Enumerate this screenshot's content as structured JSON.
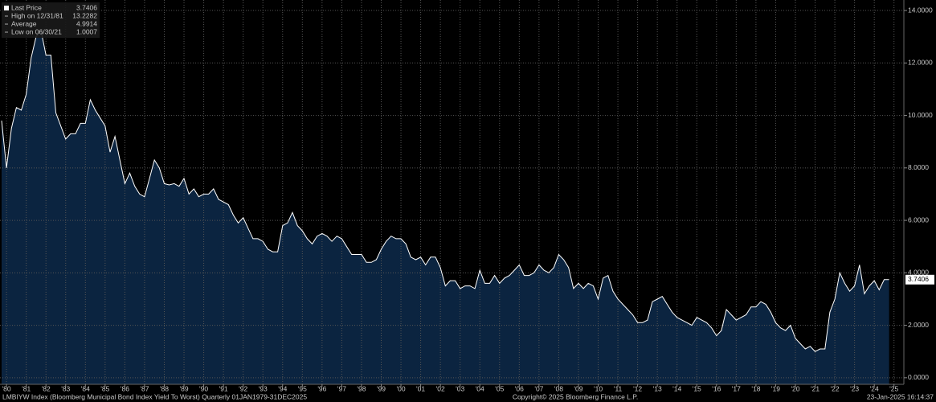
{
  "chart_data": {
    "type": "area",
    "legend": [
      {
        "label": "Last Price",
        "value": 3.7406
      },
      {
        "label": "High on 12/31/81",
        "value": 13.2282
      },
      {
        "label": "Average",
        "value": 4.9914
      },
      {
        "label": "Low on 06/30/21",
        "value": 1.0007
      }
    ],
    "footer": {
      "description": "LMBIYW Index (Bloomberg Municipal Bond Index Yield To Worst)  Quarterly 01JAN1979-31DEC2025",
      "copyright": "Copyright© 2025 Bloomberg Finance L.P.",
      "timestamp": "23-Jan-2025 16:14:37"
    },
    "xlim": [
      1979.67,
      2025.5
    ],
    "ylim": [
      -0.25,
      14.4
    ],
    "grid": true,
    "fill_color": "#0b2440",
    "line_color": "#ffffff",
    "xticks": [
      {
        "value": 1980,
        "label": "'80"
      },
      {
        "value": 1981,
        "label": "'81"
      },
      {
        "value": 1982,
        "label": "'82"
      },
      {
        "value": 1983,
        "label": "'83"
      },
      {
        "value": 1984,
        "label": "'84"
      },
      {
        "value": 1985,
        "label": "'85"
      },
      {
        "value": 1986,
        "label": "'86"
      },
      {
        "value": 1987,
        "label": "'87"
      },
      {
        "value": 1988,
        "label": "'88"
      },
      {
        "value": 1989,
        "label": "'89"
      },
      {
        "value": 1990,
        "label": "'90"
      },
      {
        "value": 1991,
        "label": "'91"
      },
      {
        "value": 1992,
        "label": "'92"
      },
      {
        "value": 1993,
        "label": "'93"
      },
      {
        "value": 1994,
        "label": "'94"
      },
      {
        "value": 1995,
        "label": "'95"
      },
      {
        "value": 1996,
        "label": "'96"
      },
      {
        "value": 1997,
        "label": "'97"
      },
      {
        "value": 1998,
        "label": "'98"
      },
      {
        "value": 1999,
        "label": "'99"
      },
      {
        "value": 2000,
        "label": "'00"
      },
      {
        "value": 2001,
        "label": "'01"
      },
      {
        "value": 2002,
        "label": "'02"
      },
      {
        "value": 2003,
        "label": "'03"
      },
      {
        "value": 2004,
        "label": "'04"
      },
      {
        "value": 2005,
        "label": "'05"
      },
      {
        "value": 2006,
        "label": "'06"
      },
      {
        "value": 2007,
        "label": "'07"
      },
      {
        "value": 2008,
        "label": "'08"
      },
      {
        "value": 2009,
        "label": "'09"
      },
      {
        "value": 2010,
        "label": "'10"
      },
      {
        "value": 2011,
        "label": "'11"
      },
      {
        "value": 2012,
        "label": "'12"
      },
      {
        "value": 2013,
        "label": "'13"
      },
      {
        "value": 2014,
        "label": "'14"
      },
      {
        "value": 2015,
        "label": "'15"
      },
      {
        "value": 2016,
        "label": "'16"
      },
      {
        "value": 2017,
        "label": "'17"
      },
      {
        "value": 2018,
        "label": "'18"
      },
      {
        "value": 2019,
        "label": "'19"
      },
      {
        "value": 2020,
        "label": "'20"
      },
      {
        "value": 2021,
        "label": "'21"
      },
      {
        "value": 2022,
        "label": "'22"
      },
      {
        "value": 2023,
        "label": "'23"
      },
      {
        "value": 2024,
        "label": "'24"
      },
      {
        "value": 2025,
        "label": "'25"
      }
    ],
    "yticks": [
      {
        "value": 0,
        "label": "0.0000"
      },
      {
        "value": 2,
        "label": "2.0000"
      },
      {
        "value": 4,
        "label": "4.0000"
      },
      {
        "value": 6,
        "label": "6.0000"
      },
      {
        "value": 8,
        "label": "8.0000"
      },
      {
        "value": 10,
        "label": "10.0000"
      },
      {
        "value": 12,
        "label": "12.0000"
      },
      {
        "value": 14,
        "label": "14.0000"
      }
    ],
    "x": [
      1979.75,
      1980,
      1980.25,
      1980.5,
      1980.75,
      1981,
      1981.25,
      1981.5,
      1981.75,
      1982,
      1982.25,
      1982.5,
      1982.75,
      1983,
      1983.25,
      1983.5,
      1983.75,
      1984,
      1984.25,
      1984.5,
      1984.75,
      1985,
      1985.25,
      1985.5,
      1985.75,
      1986,
      1986.25,
      1986.5,
      1986.75,
      1987,
      1987.25,
      1987.5,
      1987.75,
      1988,
      1988.25,
      1988.5,
      1988.75,
      1989,
      1989.25,
      1989.5,
      1989.75,
      1990,
      1990.25,
      1990.5,
      1990.75,
      1991,
      1991.25,
      1991.5,
      1991.75,
      1992,
      1992.25,
      1992.5,
      1992.75,
      1993,
      1993.25,
      1993.5,
      1993.75,
      1994,
      1994.25,
      1994.5,
      1994.75,
      1995,
      1995.25,
      1995.5,
      1995.75,
      1996,
      1996.25,
      1996.5,
      1996.75,
      1997,
      1997.25,
      1997.5,
      1997.75,
      1998,
      1998.25,
      1998.5,
      1998.75,
      1999,
      1999.25,
      1999.5,
      1999.75,
      2000,
      2000.25,
      2000.5,
      2000.75,
      2001,
      2001.25,
      2001.5,
      2001.75,
      2002,
      2002.25,
      2002.5,
      2002.75,
      2003,
      2003.25,
      2003.5,
      2003.75,
      2004,
      2004.25,
      2004.5,
      2004.75,
      2005,
      2005.25,
      2005.5,
      2005.75,
      2006,
      2006.25,
      2006.5,
      2006.75,
      2007,
      2007.25,
      2007.5,
      2007.75,
      2008,
      2008.25,
      2008.5,
      2008.75,
      2009,
      2009.25,
      2009.5,
      2009.75,
      2010,
      2010.25,
      2010.5,
      2010.75,
      2011,
      2011.25,
      2011.5,
      2011.75,
      2012,
      2012.25,
      2012.5,
      2012.75,
      2013,
      2013.25,
      2013.5,
      2013.75,
      2014,
      2014.25,
      2014.5,
      2014.75,
      2015,
      2015.25,
      2015.5,
      2015.75,
      2016,
      2016.25,
      2016.5,
      2016.75,
      2017,
      2017.25,
      2017.5,
      2017.75,
      2018,
      2018.25,
      2018.5,
      2018.75,
      2019,
      2019.25,
      2019.5,
      2019.75,
      2020,
      2020.25,
      2020.5,
      2020.75,
      2021,
      2021.25,
      2021.5,
      2021.75,
      2022,
      2022.25,
      2022.5,
      2022.75,
      2023,
      2023.25,
      2023.5,
      2023.75,
      2024,
      2024.25,
      2024.5,
      2024.75
    ],
    "series": [
      {
        "name": "Last Price",
        "values": [
          9.8,
          8.0,
          9.5,
          10.3,
          10.2,
          10.8,
          12.2,
          13.0,
          13.2282,
          12.3,
          12.3,
          10.1,
          9.6,
          9.1,
          9.3,
          9.3,
          9.7,
          9.7,
          10.6,
          10.2,
          9.9,
          9.6,
          8.6,
          9.2,
          8.3,
          7.4,
          7.8,
          7.3,
          7.0,
          6.9,
          7.6,
          8.3,
          8.0,
          7.4,
          7.35,
          7.4,
          7.3,
          7.6,
          7.0,
          7.2,
          6.9,
          7.0,
          7.0,
          7.2,
          6.8,
          6.7,
          6.6,
          6.2,
          5.9,
          6.1,
          5.7,
          5.3,
          5.3,
          5.2,
          4.9,
          4.8,
          4.8,
          5.8,
          5.9,
          6.3,
          5.8,
          5.6,
          5.3,
          5.1,
          5.4,
          5.5,
          5.4,
          5.2,
          5.4,
          5.3,
          5.0,
          4.7,
          4.7,
          4.7,
          4.4,
          4.4,
          4.5,
          4.9,
          5.2,
          5.4,
          5.3,
          5.3,
          5.1,
          4.6,
          4.5,
          4.6,
          4.3,
          4.6,
          4.6,
          4.2,
          3.5,
          3.7,
          3.7,
          3.4,
          3.5,
          3.5,
          3.4,
          4.1,
          3.6,
          3.6,
          3.9,
          3.6,
          3.8,
          3.9,
          4.1,
          4.3,
          3.9,
          3.9,
          4.0,
          4.3,
          4.1,
          4.0,
          4.2,
          4.7,
          4.5,
          4.2,
          3.4,
          3.6,
          3.4,
          3.6,
          3.5,
          3.0,
          3.8,
          3.9,
          3.3,
          3.0,
          2.8,
          2.6,
          2.4,
          2.1,
          2.1,
          2.2,
          2.9,
          3.0,
          3.1,
          2.8,
          2.5,
          2.3,
          2.2,
          2.1,
          2.0,
          2.3,
          2.2,
          2.1,
          1.9,
          1.6,
          1.8,
          2.6,
          2.4,
          2.2,
          2.3,
          2.4,
          2.7,
          2.7,
          2.9,
          2.8,
          2.5,
          2.1,
          1.9,
          1.8,
          2.0,
          1.5,
          1.3,
          1.1,
          1.2,
          1.0007,
          1.1,
          1.1,
          2.5,
          3.0,
          4.0,
          3.6,
          3.3,
          3.5,
          4.3,
          3.2,
          3.5,
          3.7,
          3.35,
          3.74,
          3.7406
        ]
      }
    ]
  }
}
